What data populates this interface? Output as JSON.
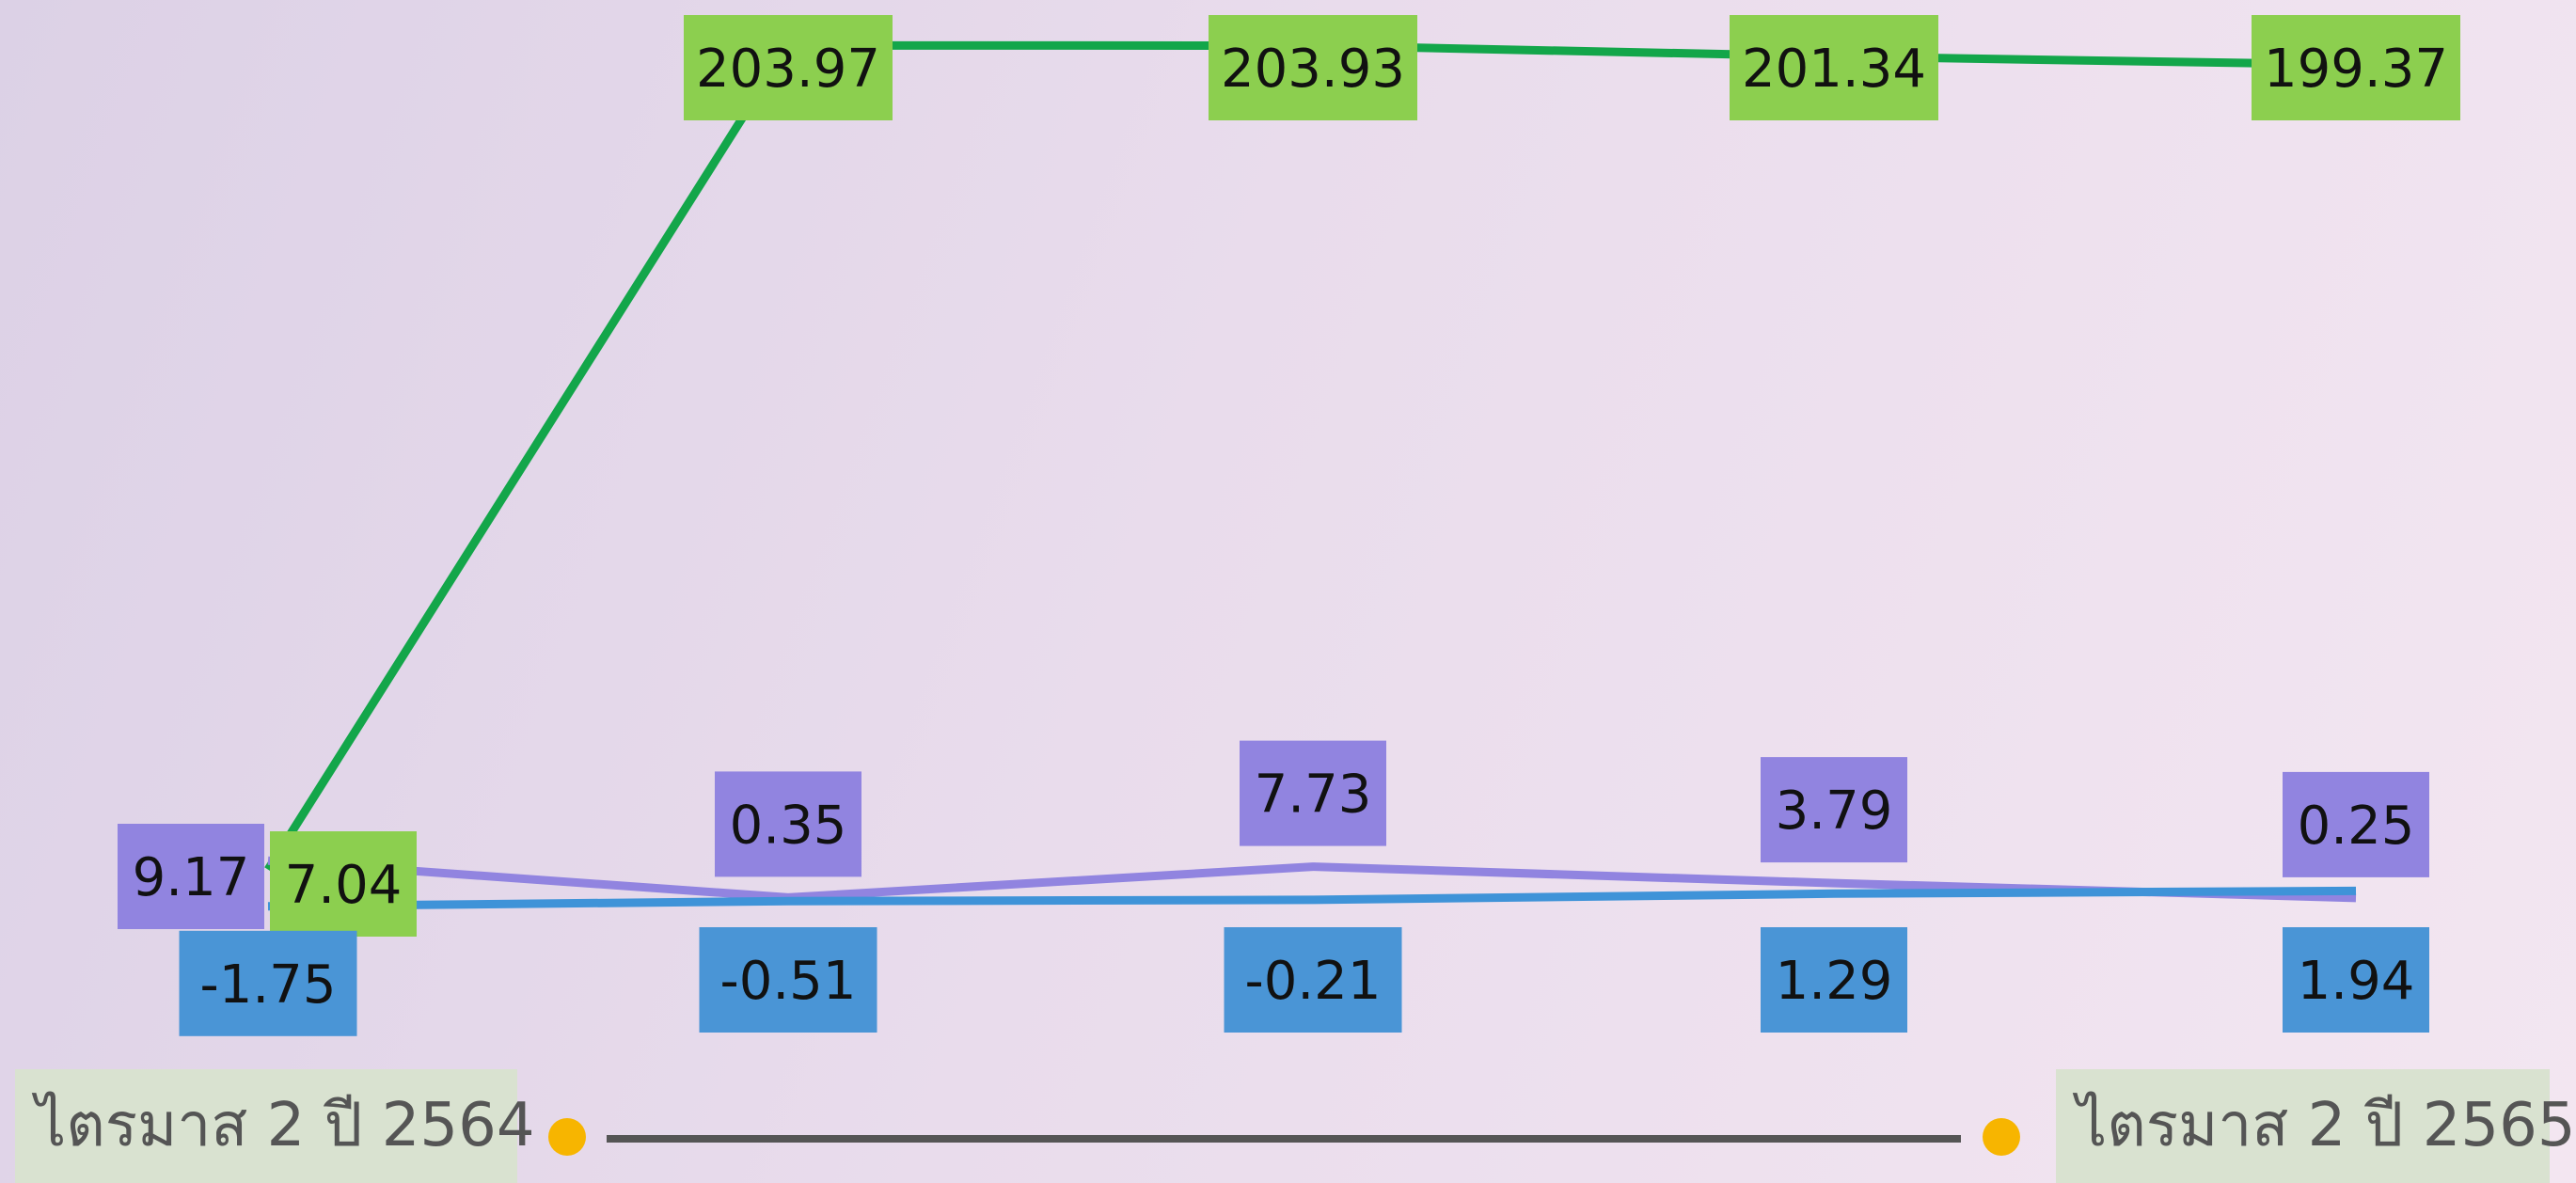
{
  "chart_data": {
    "type": "line",
    "x": [
      "",
      "",
      "",
      "",
      ""
    ],
    "series": [
      {
        "color": "#13a64a",
        "label_color": "#8ccf4f",
        "label_position": "above",
        "values": [
          7.04,
          203.97,
          203.93,
          201.34,
          199.37
        ]
      },
      {
        "color": "#9184e0",
        "label_color": "#9184e0",
        "label_position": "above",
        "values": [
          9.17,
          0.35,
          7.73,
          3.79,
          0.25
        ]
      },
      {
        "color": "#3f93d8",
        "label_color": "#4a95d6",
        "label_position": "below",
        "values": [
          -1.75,
          -0.51,
          -0.21,
          1.29,
          1.94
        ]
      }
    ]
  },
  "timeline": {
    "start_label": "ไตรมาส 2 ปี 2564",
    "end_label": "ไตรมาส 2 ปี 2565",
    "line_color": "#555555",
    "marker_color": "#f7b500"
  }
}
